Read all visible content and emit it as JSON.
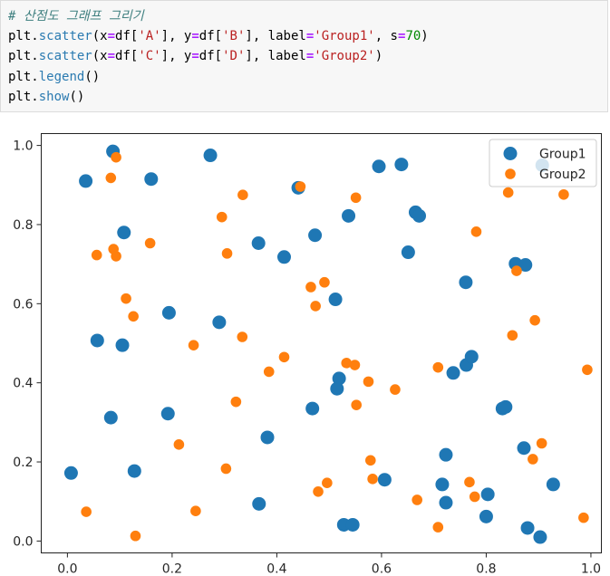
{
  "code_cell": {
    "lines": [
      [
        {
          "t": "# 산점도 그래프 그리기",
          "c": "cm"
        }
      ],
      [
        {
          "t": "plt",
          "c": "nm"
        },
        {
          "t": ".",
          "c": "pu"
        },
        {
          "t": "scatter",
          "c": "fn"
        },
        {
          "t": "(x",
          "c": "pu"
        },
        {
          "t": "=",
          "c": "op"
        },
        {
          "t": "df[",
          "c": "pu"
        },
        {
          "t": "'A'",
          "c": "st"
        },
        {
          "t": "], y",
          "c": "pu"
        },
        {
          "t": "=",
          "c": "op"
        },
        {
          "t": "df[",
          "c": "pu"
        },
        {
          "t": "'B'",
          "c": "st"
        },
        {
          "t": "], label",
          "c": "pu"
        },
        {
          "t": "=",
          "c": "op"
        },
        {
          "t": "'Group1'",
          "c": "st"
        },
        {
          "t": ", s",
          "c": "pu"
        },
        {
          "t": "=",
          "c": "op"
        },
        {
          "t": "70",
          "c": "nu"
        },
        {
          "t": ")",
          "c": "pu"
        }
      ],
      [
        {
          "t": "plt",
          "c": "nm"
        },
        {
          "t": ".",
          "c": "pu"
        },
        {
          "t": "scatter",
          "c": "fn"
        },
        {
          "t": "(x",
          "c": "pu"
        },
        {
          "t": "=",
          "c": "op"
        },
        {
          "t": "df[",
          "c": "pu"
        },
        {
          "t": "'C'",
          "c": "st"
        },
        {
          "t": "], y",
          "c": "pu"
        },
        {
          "t": "=",
          "c": "op"
        },
        {
          "t": "df[",
          "c": "pu"
        },
        {
          "t": "'D'",
          "c": "st"
        },
        {
          "t": "], label",
          "c": "pu"
        },
        {
          "t": "=",
          "c": "op"
        },
        {
          "t": "'Group2'",
          "c": "st"
        },
        {
          "t": ")",
          "c": "pu"
        }
      ],
      [
        {
          "t": "plt",
          "c": "nm"
        },
        {
          "t": ".",
          "c": "pu"
        },
        {
          "t": "legend",
          "c": "fn"
        },
        {
          "t": "()",
          "c": "pu"
        }
      ],
      [
        {
          "t": "plt",
          "c": "nm"
        },
        {
          "t": ".",
          "c": "pu"
        },
        {
          "t": "show",
          "c": "fn"
        },
        {
          "t": "()",
          "c": "pu"
        }
      ]
    ]
  },
  "chart_data": {
    "type": "scatter",
    "title": "",
    "xlabel": "",
    "ylabel": "",
    "xlim": [
      -0.05,
      1.02
    ],
    "ylim": [
      -0.03,
      1.03
    ],
    "xticks": [
      "0.0",
      "0.2",
      "0.4",
      "0.6",
      "0.8",
      "1.0"
    ],
    "yticks": [
      "0.0",
      "0.2",
      "0.4",
      "0.6",
      "0.8",
      "1.0"
    ],
    "grid": false,
    "legend_position": "top-right",
    "series": [
      {
        "name": "Group1",
        "color": "#1f77b4",
        "points": [
          [
            0.087,
            0.985
          ],
          [
            0.035,
            0.91
          ],
          [
            0.16,
            0.915
          ],
          [
            0.273,
            0.975
          ],
          [
            0.108,
            0.78
          ],
          [
            0.194,
            0.577
          ],
          [
            0.057,
            0.507
          ],
          [
            0.105,
            0.495
          ],
          [
            0.29,
            0.553
          ],
          [
            0.365,
            0.753
          ],
          [
            0.414,
            0.718
          ],
          [
            0.441,
            0.893
          ],
          [
            0.473,
            0.773
          ],
          [
            0.537,
            0.822
          ],
          [
            0.595,
            0.947
          ],
          [
            0.638,
            0.952
          ],
          [
            0.665,
            0.831
          ],
          [
            0.672,
            0.822
          ],
          [
            0.651,
            0.73
          ],
          [
            0.761,
            0.654
          ],
          [
            0.856,
            0.701
          ],
          [
            0.875,
            0.698
          ],
          [
            0.907,
            0.95
          ],
          [
            0.512,
            0.611
          ],
          [
            0.519,
            0.411
          ],
          [
            0.515,
            0.385
          ],
          [
            0.468,
            0.335
          ],
          [
            0.192,
            0.322
          ],
          [
            0.083,
            0.312
          ],
          [
            0.382,
            0.262
          ],
          [
            0.128,
            0.177
          ],
          [
            0.007,
            0.172
          ],
          [
            0.366,
            0.094
          ],
          [
            0.528,
            0.041
          ],
          [
            0.545,
            0.041
          ],
          [
            0.606,
            0.155
          ],
          [
            0.723,
            0.218
          ],
          [
            0.716,
            0.143
          ],
          [
            0.723,
            0.097
          ],
          [
            0.737,
            0.425
          ],
          [
            0.762,
            0.445
          ],
          [
            0.772,
            0.466
          ],
          [
            0.831,
            0.335
          ],
          [
            0.837,
            0.339
          ],
          [
            0.872,
            0.235
          ],
          [
            0.803,
            0.118
          ],
          [
            0.8,
            0.062
          ],
          [
            0.879,
            0.033
          ],
          [
            0.903,
            0.01
          ],
          [
            0.928,
            0.143
          ]
        ]
      },
      {
        "name": "Group2",
        "color": "#ff7f0e",
        "points": [
          [
            0.093,
            0.97
          ],
          [
            0.083,
            0.918
          ],
          [
            0.056,
            0.723
          ],
          [
            0.088,
            0.738
          ],
          [
            0.093,
            0.72
          ],
          [
            0.158,
            0.753
          ],
          [
            0.112,
            0.613
          ],
          [
            0.126,
            0.568
          ],
          [
            0.295,
            0.819
          ],
          [
            0.335,
            0.875
          ],
          [
            0.305,
            0.727
          ],
          [
            0.241,
            0.495
          ],
          [
            0.334,
            0.516
          ],
          [
            0.322,
            0.352
          ],
          [
            0.213,
            0.244
          ],
          [
            0.303,
            0.183
          ],
          [
            0.245,
            0.076
          ],
          [
            0.036,
            0.074
          ],
          [
            0.13,
            0.013
          ],
          [
            0.445,
            0.896
          ],
          [
            0.551,
            0.868
          ],
          [
            0.491,
            0.654
          ],
          [
            0.465,
            0.642
          ],
          [
            0.474,
            0.594
          ],
          [
            0.414,
            0.465
          ],
          [
            0.385,
            0.428
          ],
          [
            0.533,
            0.45
          ],
          [
            0.549,
            0.445
          ],
          [
            0.575,
            0.403
          ],
          [
            0.626,
            0.383
          ],
          [
            0.552,
            0.344
          ],
          [
            0.579,
            0.204
          ],
          [
            0.583,
            0.157
          ],
          [
            0.496,
            0.147
          ],
          [
            0.479,
            0.125
          ],
          [
            0.668,
            0.104
          ],
          [
            0.708,
            0.035
          ],
          [
            0.708,
            0.439
          ],
          [
            0.781,
            0.782
          ],
          [
            0.842,
            0.881
          ],
          [
            0.858,
            0.683
          ],
          [
            0.893,
            0.558
          ],
          [
            0.85,
            0.52
          ],
          [
            0.948,
            0.876
          ],
          [
            0.768,
            0.149
          ],
          [
            0.778,
            0.112
          ],
          [
            0.889,
            0.207
          ],
          [
            0.906,
            0.247
          ],
          [
            0.993,
            0.433
          ],
          [
            0.986,
            0.059
          ]
        ]
      }
    ]
  }
}
